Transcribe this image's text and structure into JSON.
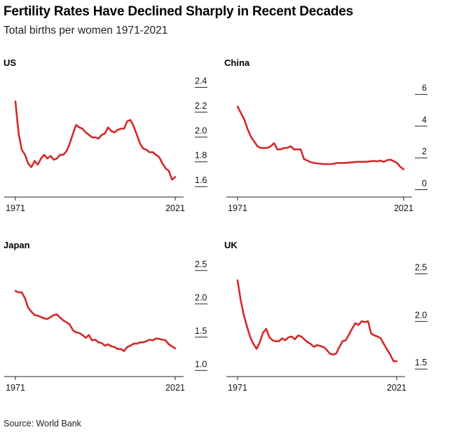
{
  "header": {
    "title": "Fertility Rates Have Declined Sharply in Recent Decades",
    "subtitle": "Total births per women 1971-2021"
  },
  "footer": {
    "source": "Source: World Bank"
  },
  "colors": {
    "line": "#d62728",
    "axis": "#222222",
    "text": "#111111"
  },
  "chart_data": [
    {
      "type": "line",
      "title": "US",
      "x_ticks": [
        "1971",
        "2021"
      ],
      "xlim": [
        1971,
        2021
      ],
      "ylim": [
        1.55,
        2.42
      ],
      "y_ticks": [
        {
          "value": 2.4,
          "label": "2.4"
        },
        {
          "value": 2.2,
          "label": "2.2"
        },
        {
          "value": 2.0,
          "label": "2.0"
        },
        {
          "value": 1.8,
          "label": "1.8"
        },
        {
          "value": 1.6,
          "label": "1.6"
        }
      ],
      "grid": false,
      "series": [
        {
          "x": [
            1971,
            1972,
            1973,
            1974,
            1975,
            1976,
            1977,
            1978,
            1979,
            1980,
            1981,
            1982,
            1983,
            1984,
            1985,
            1986,
            1987,
            1988,
            1989,
            1990,
            1991,
            1992,
            1993,
            1994,
            1995,
            1996,
            1997,
            1998,
            1999,
            2000,
            2001,
            2002,
            2003,
            2004,
            2005,
            2006,
            2007,
            2008,
            2009,
            2010,
            2011,
            2012,
            2013,
            2014,
            2015,
            2016,
            2017,
            2018,
            2019,
            2020,
            2021
          ],
          "values": [
            2.27,
            2.01,
            1.88,
            1.84,
            1.77,
            1.74,
            1.79,
            1.76,
            1.81,
            1.84,
            1.81,
            1.83,
            1.8,
            1.81,
            1.84,
            1.84,
            1.87,
            1.93,
            2.01,
            2.08,
            2.06,
            2.05,
            2.02,
            2.0,
            1.98,
            1.98,
            1.97,
            2.0,
            2.01,
            2.06,
            2.03,
            2.02,
            2.04,
            2.05,
            2.05,
            2.11,
            2.12,
            2.07,
            2.0,
            1.93,
            1.89,
            1.88,
            1.86,
            1.86,
            1.84,
            1.82,
            1.77,
            1.73,
            1.71,
            1.64,
            1.66
          ]
        }
      ]
    },
    {
      "type": "line",
      "title": "China",
      "x_ticks": [
        "1971",
        "2021"
      ],
      "xlim": [
        1971,
        2021
      ],
      "ylim": [
        -0.2,
        6.6
      ],
      "y_ticks": [
        {
          "value": 6,
          "label": "6"
        },
        {
          "value": 4,
          "label": "4"
        },
        {
          "value": 2,
          "label": "2"
        },
        {
          "value": 0,
          "label": "0"
        }
      ],
      "grid": false,
      "series": [
        {
          "x": [
            1971,
            1972,
            1973,
            1974,
            1975,
            1976,
            1977,
            1978,
            1979,
            1980,
            1981,
            1982,
            1983,
            1984,
            1985,
            1986,
            1987,
            1988,
            1989,
            1990,
            1991,
            1992,
            1993,
            1994,
            1995,
            1996,
            1997,
            1998,
            1999,
            2000,
            2001,
            2002,
            2003,
            2004,
            2005,
            2006,
            2007,
            2008,
            2009,
            2010,
            2011,
            2012,
            2013,
            2014,
            2015,
            2016,
            2017,
            2018,
            2019,
            2020,
            2021
          ],
          "values": [
            5.1,
            4.7,
            4.3,
            3.7,
            3.2,
            2.9,
            2.6,
            2.5,
            2.5,
            2.5,
            2.6,
            2.8,
            2.4,
            2.4,
            2.5,
            2.5,
            2.6,
            2.4,
            2.4,
            2.4,
            1.8,
            1.7,
            1.6,
            1.55,
            1.52,
            1.5,
            1.48,
            1.48,
            1.48,
            1.5,
            1.55,
            1.55,
            1.55,
            1.56,
            1.58,
            1.6,
            1.62,
            1.62,
            1.62,
            1.63,
            1.65,
            1.68,
            1.65,
            1.7,
            1.62,
            1.72,
            1.76,
            1.66,
            1.55,
            1.3,
            1.15
          ]
        }
      ]
    },
    {
      "type": "line",
      "title": "Japan",
      "x_ticks": [
        "1971",
        "2021"
      ],
      "xlim": [
        1971,
        2021
      ],
      "ylim": [
        0.95,
        2.55
      ],
      "y_ticks": [
        {
          "value": 2.5,
          "label": "2.5"
        },
        {
          "value": 2.0,
          "label": "2.0"
        },
        {
          "value": 1.5,
          "label": "1.5"
        },
        {
          "value": 1.0,
          "label": "1.0"
        }
      ],
      "grid": false,
      "series": [
        {
          "x": [
            1971,
            1972,
            1973,
            1974,
            1975,
            1976,
            1977,
            1978,
            1979,
            1980,
            1981,
            1982,
            1983,
            1984,
            1985,
            1986,
            1987,
            1988,
            1989,
            1990,
            1991,
            1992,
            1993,
            1994,
            1995,
            1996,
            1997,
            1998,
            1999,
            2000,
            2001,
            2002,
            2003,
            2004,
            2005,
            2006,
            2007,
            2008,
            2009,
            2010,
            2011,
            2012,
            2013,
            2014,
            2015,
            2016,
            2017,
            2018,
            2019,
            2020,
            2021
          ],
          "values": [
            2.16,
            2.14,
            2.14,
            2.05,
            1.91,
            1.85,
            1.8,
            1.79,
            1.77,
            1.75,
            1.74,
            1.77,
            1.8,
            1.81,
            1.76,
            1.72,
            1.69,
            1.66,
            1.57,
            1.54,
            1.53,
            1.5,
            1.46,
            1.5,
            1.42,
            1.43,
            1.39,
            1.38,
            1.34,
            1.36,
            1.33,
            1.32,
            1.29,
            1.29,
            1.26,
            1.32,
            1.34,
            1.37,
            1.37,
            1.39,
            1.39,
            1.41,
            1.43,
            1.42,
            1.45,
            1.44,
            1.43,
            1.42,
            1.36,
            1.33,
            1.3
          ]
        }
      ]
    },
    {
      "type": "line",
      "title": "UK",
      "x_ticks": [
        "1971",
        "2021"
      ],
      "xlim": [
        1971,
        2021
      ],
      "ylim": [
        1.45,
        2.57
      ],
      "y_ticks": [
        {
          "value": 2.5,
          "label": "2.5"
        },
        {
          "value": 2.0,
          "label": "2.0"
        },
        {
          "value": 1.5,
          "label": "1.5"
        }
      ],
      "grid": false,
      "series": [
        {
          "x": [
            1971,
            1972,
            1973,
            1974,
            1975,
            1976,
            1977,
            1978,
            1979,
            1980,
            1981,
            1982,
            1983,
            1984,
            1985,
            1986,
            1987,
            1988,
            1989,
            1990,
            1991,
            1992,
            1993,
            1994,
            1995,
            1996,
            1997,
            1998,
            1999,
            2000,
            2001,
            2002,
            2003,
            2004,
            2005,
            2006,
            2007,
            2008,
            2009,
            2010,
            2011,
            2012,
            2013,
            2014,
            2015,
            2016,
            2017,
            2018,
            2019,
            2020,
            2021
          ],
          "values": [
            2.41,
            2.2,
            2.04,
            1.92,
            1.81,
            1.74,
            1.69,
            1.76,
            1.86,
            1.9,
            1.81,
            1.78,
            1.77,
            1.77,
            1.8,
            1.78,
            1.81,
            1.82,
            1.79,
            1.83,
            1.82,
            1.79,
            1.76,
            1.74,
            1.71,
            1.73,
            1.72,
            1.71,
            1.68,
            1.64,
            1.63,
            1.64,
            1.71,
            1.77,
            1.78,
            1.84,
            1.9,
            1.96,
            1.94,
            1.98,
            1.97,
            1.98,
            1.85,
            1.83,
            1.82,
            1.8,
            1.74,
            1.68,
            1.63,
            1.56,
            1.56
          ]
        }
      ]
    }
  ]
}
